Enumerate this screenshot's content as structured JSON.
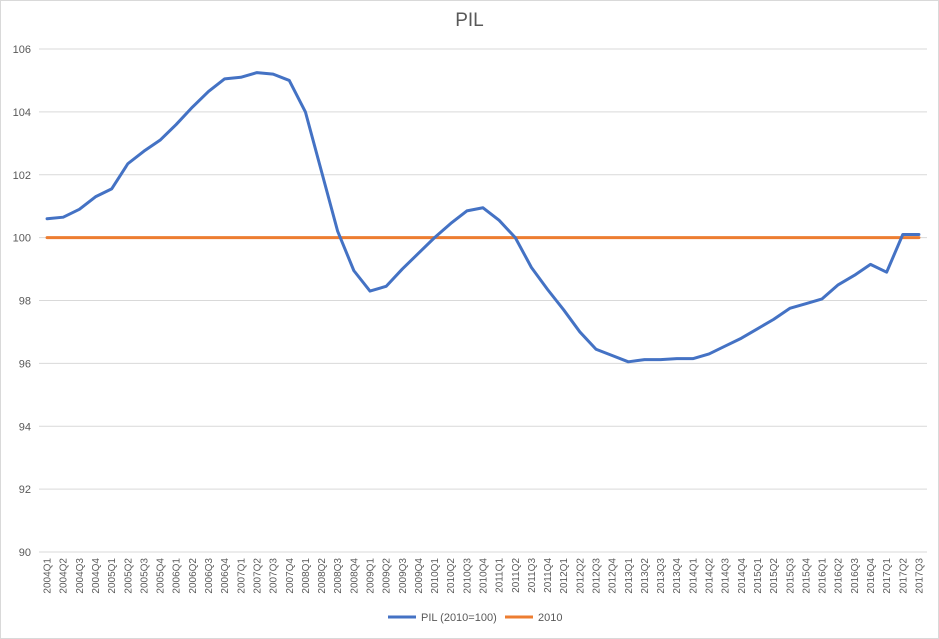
{
  "chart_data": {
    "type": "line",
    "title": "PIL",
    "xlabel": "",
    "ylabel": "",
    "ylim": [
      90,
      106
    ],
    "yticks": [
      90,
      92,
      94,
      96,
      98,
      100,
      102,
      104,
      106
    ],
    "grid": true,
    "legend_position": "bottom",
    "x": [
      "2004Q1",
      "2004Q2",
      "2004Q3",
      "2004Q4",
      "2005Q1",
      "2005Q2",
      "2005Q3",
      "2005Q4",
      "2006Q1",
      "2006Q2",
      "2006Q3",
      "2006Q4",
      "2007Q1",
      "2007Q2",
      "2007Q3",
      "2007Q4",
      "2008Q1",
      "2008Q2",
      "2008Q3",
      "2008Q4",
      "2009Q1",
      "2009Q2",
      "2009Q3",
      "2009Q4",
      "2010Q1",
      "2010Q2",
      "2010Q3",
      "2010Q4",
      "2011Q1",
      "2011Q2",
      "2011Q3",
      "2011Q4",
      "2012Q1",
      "2012Q2",
      "2012Q3",
      "2012Q4",
      "2013Q1",
      "2013Q2",
      "2013Q3",
      "2013Q4",
      "2014Q1",
      "2014Q2",
      "2014Q3",
      "2014Q4",
      "2015Q1",
      "2015Q2",
      "2015Q3",
      "2015Q4",
      "2016Q1",
      "2016Q2",
      "2016Q3",
      "2016Q4",
      "2017Q1",
      "2017Q2",
      "2017Q3"
    ],
    "series": [
      {
        "name": "PIL (2010=100)",
        "color": "#4472c4",
        "values": [
          100.6,
          100.65,
          100.9,
          101.3,
          101.55,
          102.35,
          102.75,
          103.1,
          103.6,
          104.15,
          104.65,
          105.05,
          105.1,
          105.25,
          105.2,
          105.0,
          104.0,
          102.1,
          100.2,
          98.95,
          98.3,
          98.45,
          99.0,
          99.5,
          100.0,
          100.45,
          100.85,
          100.95,
          100.55,
          100.0,
          99.05,
          98.35,
          97.7,
          97.0,
          96.45,
          96.25,
          96.05,
          96.12,
          96.12,
          96.15,
          96.15,
          96.3,
          96.55,
          96.8,
          97.1,
          97.4,
          97.75,
          97.9,
          98.05,
          98.5,
          98.8,
          99.15,
          98.9,
          100.1,
          100.1
        ]
      },
      {
        "name": "2010",
        "color": "#ed7d31",
        "values": [
          100,
          100,
          100,
          100,
          100,
          100,
          100,
          100,
          100,
          100,
          100,
          100,
          100,
          100,
          100,
          100,
          100,
          100,
          100,
          100,
          100,
          100,
          100,
          100,
          100,
          100,
          100,
          100,
          100,
          100,
          100,
          100,
          100,
          100,
          100,
          100,
          100,
          100,
          100,
          100,
          100,
          100,
          100,
          100,
          100,
          100,
          100,
          100,
          100,
          100,
          100,
          100,
          100,
          100,
          100
        ]
      }
    ]
  }
}
